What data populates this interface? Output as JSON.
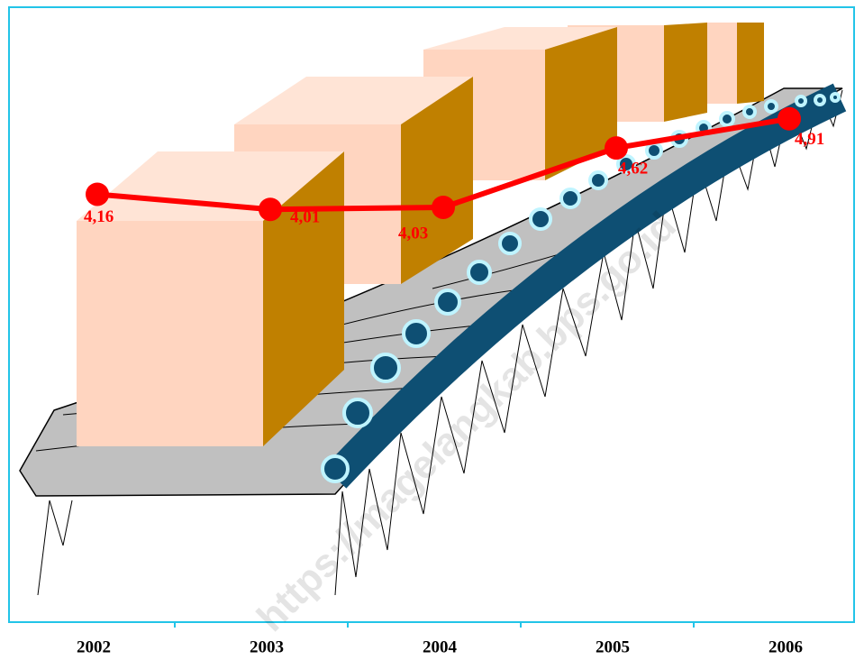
{
  "chart_data": {
    "type": "line",
    "categories": [
      "2002",
      "2003",
      "2004",
      "2005",
      "2006"
    ],
    "series": [
      {
        "color": "#ff0000",
        "values": [
          4.16,
          4.01,
          4.03,
          4.62,
          4.91
        ],
        "value_labels": [
          "4,16",
          "4,01",
          "4,03",
          "4,62",
          "4,91"
        ]
      }
    ],
    "ylim": [
      0,
      6
    ],
    "watermark": "https://magelangkab.bps.go.id"
  }
}
